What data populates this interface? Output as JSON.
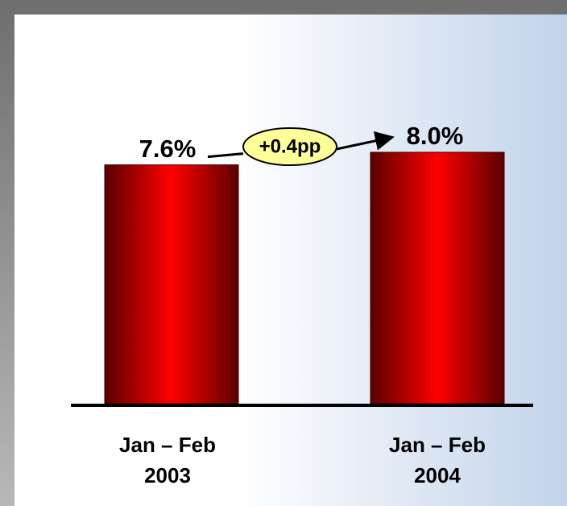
{
  "chart_data": {
    "type": "bar",
    "categories": [
      "Jan – Feb 2003",
      "Jan – Feb 2004"
    ],
    "values": [
      7.6,
      8.0
    ],
    "value_labels": [
      "7.6%",
      "8.0%"
    ],
    "annotation": "+0.4pp",
    "color": "#ff0000"
  }
}
